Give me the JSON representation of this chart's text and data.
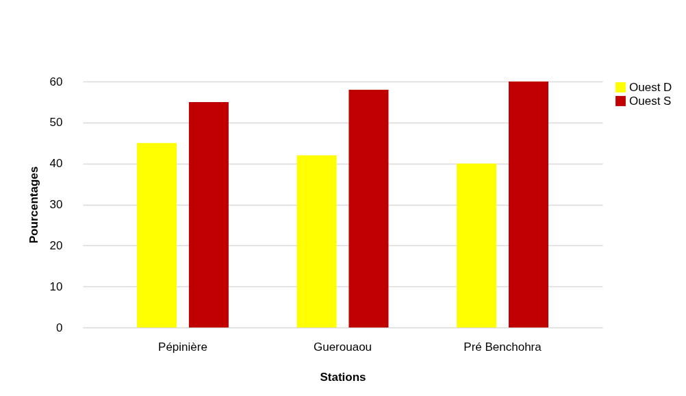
{
  "chart_data": {
    "type": "bar",
    "xlabel": "Stations",
    "ylabel": "Pourcentages",
    "categories": [
      "Pépinière",
      "Guerouaou",
      "Pré Benchohra"
    ],
    "series": [
      {
        "name": "Ouest D",
        "color": "#ffff00",
        "values": [
          45,
          42,
          40
        ]
      },
      {
        "name": "Ouest S",
        "color": "#c00000",
        "values": [
          55,
          58,
          60
        ]
      }
    ],
    "ylim": [
      0,
      60
    ],
    "yticks": [
      0,
      10,
      20,
      30,
      40,
      50,
      60
    ],
    "grid": "y",
    "legend": "right"
  }
}
